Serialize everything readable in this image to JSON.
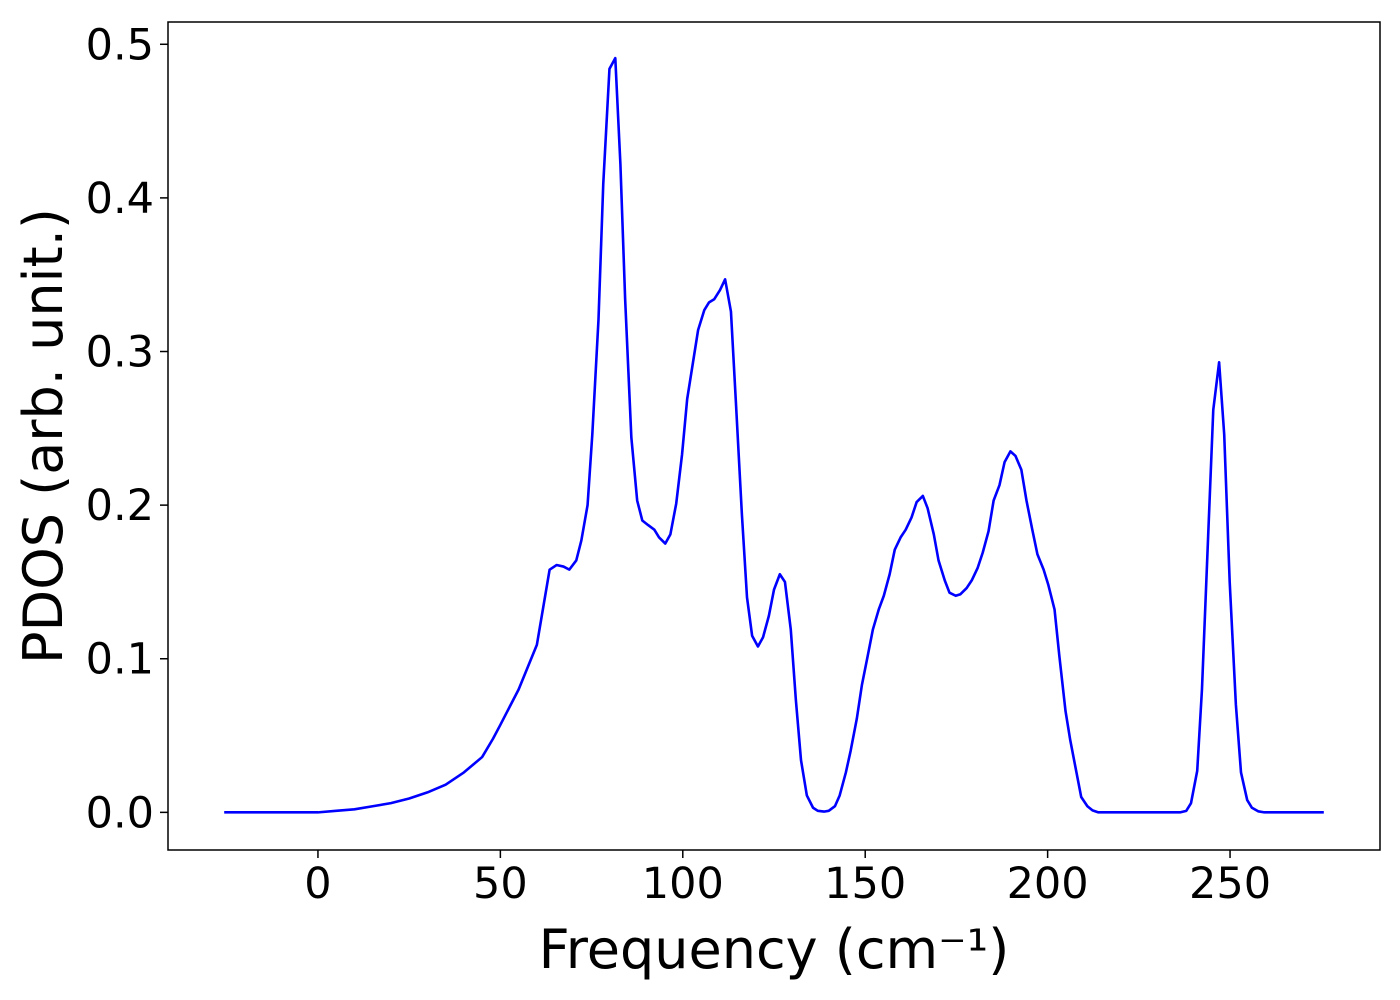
{
  "chart_data": {
    "type": "line",
    "xlabel": "Frequency (cm⁻¹)",
    "ylabel": "PDOS (arb. unit.)",
    "xlim": [
      -41.1,
      291.1
    ],
    "ylim": [
      -0.0245,
      0.5145
    ],
    "xticks": [
      0,
      50,
      100,
      150,
      200,
      250
    ],
    "yticks": [
      {
        "value": 0,
        "label": "0.0"
      },
      0.1,
      0.2,
      0.3,
      0.4,
      0.5
    ],
    "grid": false,
    "x": [
      -25.7,
      0,
      5,
      10,
      15,
      20,
      25,
      30,
      35,
      40,
      45,
      48,
      50,
      55,
      60,
      63.5,
      65.4,
      67.3,
      68.9,
      70.8,
      72.2,
      73.9,
      75.2,
      76.9,
      78.2,
      79.9,
      81.5,
      82.9,
      84.2,
      85.9,
      87.5,
      88.9,
      90.5,
      92.2,
      93.5,
      95.2,
      96.6,
      98.2,
      99.8,
      101.2,
      102.8,
      104.2,
      105.9,
      107.2,
      108.6,
      110.2,
      111.6,
      113.2,
      114.6,
      116.2,
      117.6,
      119.0,
      120.6,
      122.0,
      123.6,
      125.0,
      126.6,
      128.0,
      129.6,
      131.0,
      132.4,
      134.0,
      135.7,
      137.0,
      138.7,
      140.0,
      141.7,
      143.0,
      144.7,
      146.0,
      147.7,
      149.1,
      150.7,
      152.1,
      153.7,
      155.1,
      156.7,
      158.1,
      159.7,
      161.1,
      162.7,
      164.1,
      165.8,
      167.1,
      168.8,
      170.1,
      171.8,
      173.1,
      174.8,
      176.1,
      177.8,
      179.2,
      180.8,
      182.2,
      183.8,
      185.2,
      186.8,
      188.2,
      189.8,
      191.2,
      192.8,
      194.2,
      195.8,
      197.2,
      198.9,
      200.2,
      201.9,
      203.2,
      204.9,
      206.2,
      207.9,
      209.2,
      210.9,
      212.3,
      213.9,
      236.3,
      238.0,
      239.3,
      241.0,
      242.3,
      244.0,
      245.4,
      247.0,
      248.4,
      249.9,
      251.6,
      253.0,
      254.7,
      256.0,
      257.7,
      259.4,
      275.7
    ],
    "series": [
      {
        "color": "#0000ff",
        "values": [
          0,
          0,
          0.001,
          0.002,
          0.004,
          0.006,
          0.009,
          0.013,
          0.018,
          0.026,
          0.036,
          0.048,
          0.057,
          0.08,
          0.109,
          0.158,
          0.161,
          0.16,
          0.158,
          0.164,
          0.177,
          0.2,
          0.246,
          0.321,
          0.409,
          0.484,
          0.491,
          0.422,
          0.334,
          0.244,
          0.203,
          0.19,
          0.187,
          0.184,
          0.179,
          0.175,
          0.181,
          0.201,
          0.233,
          0.269,
          0.293,
          0.314,
          0.327,
          0.332,
          0.334,
          0.34,
          0.347,
          0.326,
          0.265,
          0.194,
          0.14,
          0.115,
          0.108,
          0.114,
          0.128,
          0.145,
          0.155,
          0.15,
          0.119,
          0.073,
          0.034,
          0.011,
          0.003,
          0.001,
          0.0005,
          0.001,
          0.004,
          0.011,
          0.026,
          0.04,
          0.061,
          0.083,
          0.102,
          0.119,
          0.132,
          0.141,
          0.155,
          0.171,
          0.179,
          0.184,
          0.192,
          0.202,
          0.206,
          0.198,
          0.181,
          0.164,
          0.151,
          0.143,
          0.141,
          0.142,
          0.146,
          0.151,
          0.159,
          0.169,
          0.183,
          0.203,
          0.213,
          0.228,
          0.235,
          0.232,
          0.223,
          0.203,
          0.184,
          0.168,
          0.158,
          0.148,
          0.132,
          0.102,
          0.066,
          0.047,
          0.026,
          0.01,
          0.004,
          0.0013,
          0,
          0,
          0.001,
          0.006,
          0.027,
          0.08,
          0.18,
          0.262,
          0.293,
          0.246,
          0.15,
          0.07,
          0.026,
          0.008,
          0.003,
          0.0007,
          0,
          0
        ]
      }
    ]
  }
}
